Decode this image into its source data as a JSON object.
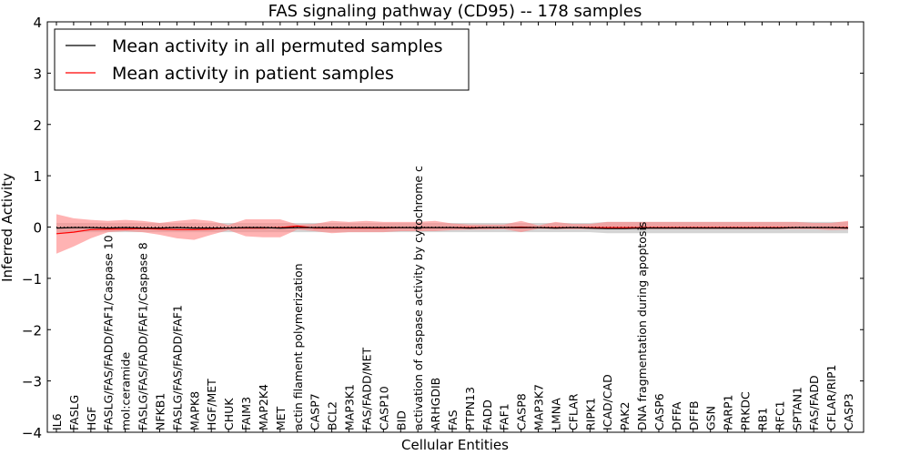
{
  "chart_data": {
    "type": "line",
    "title": "FAS signaling pathway (CD95) -- 178 samples",
    "xlabel": "Cellular Entities",
    "ylabel": "Inferred Activity",
    "ylim": [
      -4,
      4
    ],
    "yticks": [
      -4,
      -3,
      -2,
      -1,
      0,
      1,
      2,
      3,
      4
    ],
    "ytick_labels": [
      "−4",
      "−3",
      "−2",
      "−1",
      "0",
      "1",
      "2",
      "3",
      "4"
    ],
    "legend_position": "top-left",
    "categories": [
      "IL6",
      "FASLG",
      "HGF",
      "FASLG/FAS/FADD/FAF1/Caspase 10",
      "mol:ceramide",
      "FASLG/FAS/FADD/FAF1/Caspase 8",
      "NFKB1",
      "FASLG/FAS/FADD/FAF1",
      "MAPK8",
      "HGF/MET",
      "CHUK",
      "FAIM3",
      "MAP2K4",
      "MET",
      "actin filament polymerization",
      "CASP7",
      "BCL2",
      "MAP3K1",
      "FAS/FADD/MET",
      "CASP10",
      "BID",
      "activation of caspase activity by cytochrome c",
      "ARHGDIB",
      "FAS",
      "PTPN13",
      "FADD",
      "FAF1",
      "CASP8",
      "MAP3K7",
      "LMNA",
      "CFLAR",
      "RIPK1",
      "ICAD/CAD",
      "PAK2",
      "DNA fragmentation during apoptosis",
      "CASP6",
      "DFFA",
      "DFFB",
      "GSN",
      "PARP1",
      "PRKDC",
      "RB1",
      "RFC1",
      "SPTAN1",
      "FAS/FADD",
      "CFLAR/RIP1",
      "CASP3"
    ],
    "series": [
      {
        "name": "Mean activity in all permuted samples",
        "color": "#000000",
        "band_color": "#b0b0b0",
        "values": [
          -0.02,
          -0.01,
          -0.01,
          -0.02,
          -0.01,
          -0.02,
          -0.02,
          -0.01,
          -0.02,
          -0.02,
          -0.02,
          -0.01,
          -0.01,
          -0.02,
          -0.01,
          -0.01,
          -0.01,
          -0.01,
          -0.01,
          -0.01,
          -0.01,
          -0.01,
          -0.01,
          -0.01,
          -0.02,
          -0.01,
          -0.01,
          -0.01,
          -0.01,
          -0.02,
          -0.01,
          -0.02,
          -0.03,
          -0.03,
          -0.02,
          -0.02,
          -0.02,
          -0.02,
          -0.02,
          -0.02,
          -0.02,
          -0.02,
          -0.02,
          -0.01,
          -0.01,
          -0.01,
          -0.02
        ],
        "lower": [
          -0.12,
          -0.1,
          -0.1,
          -0.1,
          -0.1,
          -0.1,
          -0.1,
          -0.1,
          -0.1,
          -0.1,
          -0.1,
          -0.1,
          -0.1,
          -0.1,
          -0.1,
          -0.1,
          -0.1,
          -0.1,
          -0.1,
          -0.1,
          -0.1,
          -0.1,
          -0.1,
          -0.1,
          -0.1,
          -0.1,
          -0.1,
          -0.1,
          -0.1,
          -0.1,
          -0.1,
          -0.1,
          -0.12,
          -0.12,
          -0.12,
          -0.12,
          -0.12,
          -0.12,
          -0.12,
          -0.12,
          -0.12,
          -0.12,
          -0.12,
          -0.12,
          -0.12,
          -0.12,
          -0.12
        ],
        "upper": [
          0.08,
          0.08,
          0.08,
          0.08,
          0.08,
          0.08,
          0.08,
          0.08,
          0.08,
          0.08,
          0.08,
          0.08,
          0.08,
          0.08,
          0.08,
          0.08,
          0.08,
          0.08,
          0.08,
          0.08,
          0.08,
          0.08,
          0.08,
          0.08,
          0.08,
          0.08,
          0.08,
          0.08,
          0.08,
          0.08,
          0.08,
          0.08,
          0.1,
          0.1,
          0.1,
          0.1,
          0.1,
          0.1,
          0.1,
          0.1,
          0.1,
          0.1,
          0.1,
          0.1,
          0.1,
          0.1,
          0.1
        ]
      },
      {
        "name": "Mean activity in patient samples",
        "color": "#ff0000",
        "band_color": "#ff8080",
        "values": [
          -0.13,
          -0.1,
          -0.05,
          -0.04,
          -0.04,
          -0.03,
          -0.04,
          -0.05,
          -0.05,
          -0.04,
          -0.02,
          -0.02,
          -0.02,
          -0.01,
          0.02,
          -0.02,
          -0.02,
          -0.02,
          -0.02,
          -0.02,
          -0.01,
          -0.01,
          -0.01,
          -0.01,
          -0.01,
          -0.01,
          -0.01,
          0.0,
          -0.01,
          -0.01,
          -0.01,
          -0.01,
          -0.01,
          -0.01,
          -0.01,
          -0.01,
          -0.01,
          -0.01,
          -0.01,
          -0.01,
          -0.01,
          -0.01,
          -0.01,
          -0.01,
          -0.01,
          -0.01,
          -0.01
        ],
        "lower": [
          -0.52,
          -0.38,
          -0.22,
          -0.1,
          -0.08,
          -0.1,
          -0.15,
          -0.22,
          -0.25,
          -0.15,
          -0.06,
          -0.18,
          -0.2,
          -0.2,
          -0.05,
          -0.08,
          -0.12,
          -0.1,
          -0.1,
          -0.1,
          -0.08,
          -0.08,
          -0.08,
          -0.06,
          -0.05,
          -0.05,
          -0.04,
          -0.1,
          -0.03,
          -0.04,
          -0.04,
          -0.04,
          -0.04,
          -0.04,
          -0.04,
          -0.04,
          -0.04,
          -0.04,
          -0.04,
          -0.04,
          -0.04,
          -0.04,
          -0.04,
          -0.04,
          -0.04,
          -0.06,
          -0.05
        ],
        "upper": [
          0.25,
          0.17,
          0.14,
          0.12,
          0.14,
          0.12,
          0.08,
          0.12,
          0.15,
          0.12,
          0.04,
          0.15,
          0.15,
          0.15,
          0.05,
          0.06,
          0.12,
          0.1,
          0.12,
          0.1,
          0.1,
          0.1,
          0.12,
          0.07,
          0.05,
          0.05,
          0.05,
          0.12,
          0.03,
          0.1,
          0.06,
          0.06,
          0.1,
          0.1,
          0.1,
          0.1,
          0.1,
          0.1,
          0.1,
          0.1,
          0.1,
          0.1,
          0.1,
          0.1,
          0.08,
          0.08,
          0.12
        ]
      }
    ]
  }
}
